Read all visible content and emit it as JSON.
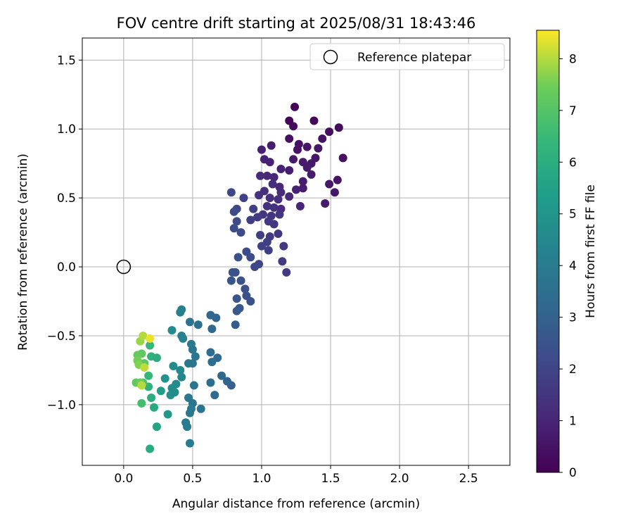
{
  "chart_data": {
    "type": "scatter",
    "title": "FOV centre drift starting at 2025/08/31 18:43:46",
    "xlabel": "Angular distance from reference (arcmin)",
    "ylabel": "Rotation from reference (arcmin)",
    "xlim": [
      -0.3,
      2.8
    ],
    "ylim": [
      -1.44,
      1.66
    ],
    "x_ticks": [
      0.0,
      0.5,
      1.0,
      1.5,
      2.0,
      2.5
    ],
    "x_tick_labels": [
      "0.0",
      "0.5",
      "1.0",
      "1.5",
      "2.0",
      "2.5"
    ],
    "y_ticks": [
      -1.0,
      -0.5,
      0.0,
      0.5,
      1.0,
      1.5
    ],
    "y_tick_labels": [
      "−1.0",
      "−0.5",
      "0.0",
      "0.5",
      "1.0",
      "1.5"
    ],
    "grid": true,
    "legend": {
      "placement": "top-right",
      "entries": [
        "Reference platepar"
      ]
    },
    "reference_point": {
      "x": 0.0,
      "y": 0.0,
      "label": "Reference platepar"
    },
    "colorbar": {
      "label": "Hours from first FF file",
      "colormap": "viridis",
      "range": [
        0,
        8.55
      ],
      "ticks": [
        0,
        1,
        2,
        3,
        4,
        5,
        6,
        7,
        8
      ],
      "tick_labels": [
        "0",
        "1",
        "2",
        "3",
        "4",
        "5",
        "6",
        "7",
        "8"
      ]
    },
    "series": [
      {
        "color_by": "hours",
        "points": [
          {
            "x": 1.24,
            "y": 1.16,
            "c": 0.1
          },
          {
            "x": 1.38,
            "y": 1.06,
            "c": 0.2
          },
          {
            "x": 1.56,
            "y": 1.01,
            "c": 0.3
          },
          {
            "x": 1.2,
            "y": 1.06,
            "c": 0.2
          },
          {
            "x": 1.23,
            "y": 1.02,
            "c": 0.3
          },
          {
            "x": 1.49,
            "y": 0.98,
            "c": 0.4
          },
          {
            "x": 1.44,
            "y": 0.93,
            "c": 0.5
          },
          {
            "x": 1.2,
            "y": 0.93,
            "c": 0.4
          },
          {
            "x": 1.27,
            "y": 0.89,
            "c": 0.5
          },
          {
            "x": 1.07,
            "y": 0.88,
            "c": 0.8
          },
          {
            "x": 1.0,
            "y": 0.85,
            "c": 0.9
          },
          {
            "x": 1.26,
            "y": 0.85,
            "c": 0.5
          },
          {
            "x": 1.33,
            "y": 0.87,
            "c": 0.6
          },
          {
            "x": 1.41,
            "y": 0.86,
            "c": 0.6
          },
          {
            "x": 1.59,
            "y": 0.79,
            "c": 0.4
          },
          {
            "x": 1.02,
            "y": 0.78,
            "c": 0.9
          },
          {
            "x": 1.06,
            "y": 0.76,
            "c": 0.9
          },
          {
            "x": 1.23,
            "y": 0.78,
            "c": 0.7
          },
          {
            "x": 1.3,
            "y": 0.76,
            "c": 0.7
          },
          {
            "x": 1.36,
            "y": 0.75,
            "c": 0.6
          },
          {
            "x": 1.39,
            "y": 0.79,
            "c": 0.6
          },
          {
            "x": 1.14,
            "y": 0.71,
            "c": 0.9
          },
          {
            "x": 1.2,
            "y": 0.7,
            "c": 0.8
          },
          {
            "x": 1.33,
            "y": 0.72,
            "c": 0.7
          },
          {
            "x": 1.36,
            "y": 0.67,
            "c": 0.7
          },
          {
            "x": 1.04,
            "y": 0.66,
            "c": 1.1
          },
          {
            "x": 1.09,
            "y": 0.65,
            "c": 1.1
          },
          {
            "x": 0.99,
            "y": 0.66,
            "c": 1.2
          },
          {
            "x": 1.3,
            "y": 0.62,
            "c": 0.8
          },
          {
            "x": 1.55,
            "y": 0.63,
            "c": 0.5
          },
          {
            "x": 1.08,
            "y": 0.6,
            "c": 1.2
          },
          {
            "x": 1.13,
            "y": 0.58,
            "c": 1.1
          },
          {
            "x": 1.49,
            "y": 0.6,
            "c": 0.6
          },
          {
            "x": 1.3,
            "y": 0.57,
            "c": 0.8
          },
          {
            "x": 1.25,
            "y": 0.56,
            "c": 0.9
          },
          {
            "x": 1.02,
            "y": 0.55,
            "c": 1.3
          },
          {
            "x": 1.14,
            "y": 0.54,
            "c": 1.2
          },
          {
            "x": 0.98,
            "y": 0.52,
            "c": 1.4
          },
          {
            "x": 1.06,
            "y": 0.5,
            "c": 1.3
          },
          {
            "x": 1.53,
            "y": 0.54,
            "c": 0.6
          },
          {
            "x": 1.12,
            "y": 0.49,
            "c": 1.3
          },
          {
            "x": 1.2,
            "y": 0.51,
            "c": 1.1
          },
          {
            "x": 0.78,
            "y": 0.54,
            "c": 2.1
          },
          {
            "x": 0.87,
            "y": 0.5,
            "c": 1.9
          },
          {
            "x": 1.04,
            "y": 0.44,
            "c": 1.4
          },
          {
            "x": 1.09,
            "y": 0.43,
            "c": 1.4
          },
          {
            "x": 1.14,
            "y": 0.42,
            "c": 1.3
          },
          {
            "x": 1.28,
            "y": 0.44,
            "c": 1.0
          },
          {
            "x": 1.46,
            "y": 0.46,
            "c": 0.7
          },
          {
            "x": 0.82,
            "y": 0.42,
            "c": 2.1
          },
          {
            "x": 0.94,
            "y": 0.42,
            "c": 1.8
          },
          {
            "x": 0.8,
            "y": 0.4,
            "c": 2.2
          },
          {
            "x": 1.01,
            "y": 0.38,
            "c": 1.6
          },
          {
            "x": 1.07,
            "y": 0.37,
            "c": 1.5
          },
          {
            "x": 1.13,
            "y": 0.38,
            "c": 1.5
          },
          {
            "x": 0.97,
            "y": 0.36,
            "c": 1.7
          },
          {
            "x": 0.92,
            "y": 0.34,
            "c": 1.8
          },
          {
            "x": 0.82,
            "y": 0.33,
            "c": 2.2
          },
          {
            "x": 1.05,
            "y": 0.33,
            "c": 1.6
          },
          {
            "x": 1.09,
            "y": 0.31,
            "c": 1.6
          },
          {
            "x": 0.8,
            "y": 0.28,
            "c": 2.3
          },
          {
            "x": 0.85,
            "y": 0.25,
            "c": 2.2
          },
          {
            "x": 1.12,
            "y": 0.24,
            "c": 1.6
          },
          {
            "x": 0.99,
            "y": 0.23,
            "c": 1.8
          },
          {
            "x": 1.06,
            "y": 0.22,
            "c": 1.7
          },
          {
            "x": 1.04,
            "y": 0.18,
            "c": 1.8
          },
          {
            "x": 1.0,
            "y": 0.15,
            "c": 1.9
          },
          {
            "x": 1.05,
            "y": 0.12,
            "c": 1.8
          },
          {
            "x": 1.16,
            "y": 0.15,
            "c": 1.6
          },
          {
            "x": 0.89,
            "y": 0.11,
            "c": 2.2
          },
          {
            "x": 0.83,
            "y": 0.07,
            "c": 2.4
          },
          {
            "x": 0.92,
            "y": 0.07,
            "c": 2.2
          },
          {
            "x": 1.15,
            "y": 0.04,
            "c": 1.7
          },
          {
            "x": 0.98,
            "y": 0.02,
            "c": 2.0
          },
          {
            "x": 0.95,
            "y": 0.0,
            "c": 2.1
          },
          {
            "x": 0.81,
            "y": -0.04,
            "c": 2.5
          },
          {
            "x": 0.79,
            "y": -0.04,
            "c": 2.5
          },
          {
            "x": 1.18,
            "y": -0.04,
            "c": 1.7
          },
          {
            "x": 0.85,
            "y": -0.1,
            "c": 2.4
          },
          {
            "x": 0.78,
            "y": -0.1,
            "c": 2.6
          },
          {
            "x": 0.88,
            "y": -0.16,
            "c": 2.4
          },
          {
            "x": 0.89,
            "y": -0.21,
            "c": 2.4
          },
          {
            "x": 0.82,
            "y": -0.23,
            "c": 2.6
          },
          {
            "x": 0.92,
            "y": -0.25,
            "c": 2.4
          },
          {
            "x": 0.84,
            "y": -0.3,
            "c": 2.6
          },
          {
            "x": 0.82,
            "y": -0.32,
            "c": 2.7
          },
          {
            "x": 0.63,
            "y": -0.35,
            "c": 3.2
          },
          {
            "x": 0.67,
            "y": -0.37,
            "c": 3.1
          },
          {
            "x": 0.81,
            "y": -0.42,
            "c": 2.8
          },
          {
            "x": 0.54,
            "y": -0.42,
            "c": 3.5
          },
          {
            "x": 0.48,
            "y": -0.4,
            "c": 3.7
          },
          {
            "x": 0.64,
            "y": -0.45,
            "c": 3.2
          },
          {
            "x": 0.78,
            "y": -0.86,
            "c": 3.0
          },
          {
            "x": 0.75,
            "y": -0.83,
            "c": 3.1
          },
          {
            "x": 0.71,
            "y": -0.79,
            "c": 3.2
          },
          {
            "x": 0.63,
            "y": -0.84,
            "c": 3.4
          },
          {
            "x": 0.66,
            "y": -0.93,
            "c": 3.3
          },
          {
            "x": 0.56,
            "y": -1.03,
            "c": 3.6
          },
          {
            "x": 0.68,
            "y": -0.66,
            "c": 3.3
          },
          {
            "x": 0.63,
            "y": -0.62,
            "c": 3.4
          },
          {
            "x": 0.64,
            "y": -0.69,
            "c": 3.4
          },
          {
            "x": 0.52,
            "y": -0.65,
            "c": 3.8
          },
          {
            "x": 0.5,
            "y": -0.6,
            "c": 3.8
          },
          {
            "x": 0.49,
            "y": -0.56,
            "c": 3.9
          },
          {
            "x": 0.51,
            "y": -0.86,
            "c": 3.8
          },
          {
            "x": 0.47,
            "y": -0.7,
            "c": 3.9
          },
          {
            "x": 0.5,
            "y": -0.7,
            "c": 3.8
          },
          {
            "x": 0.47,
            "y": -0.95,
            "c": 3.9
          },
          {
            "x": 0.5,
            "y": -0.99,
            "c": 3.8
          },
          {
            "x": 0.49,
            "y": -1.03,
            "c": 3.9
          },
          {
            "x": 0.48,
            "y": -1.06,
            "c": 3.9
          },
          {
            "x": 0.45,
            "y": -1.13,
            "c": 4.0
          },
          {
            "x": 0.46,
            "y": -1.16,
            "c": 4.0
          },
          {
            "x": 0.48,
            "y": -1.28,
            "c": 4.0
          },
          {
            "x": 0.41,
            "y": -0.33,
            "c": 4.2
          },
          {
            "x": 0.42,
            "y": -0.31,
            "c": 4.2
          },
          {
            "x": 0.42,
            "y": -0.5,
            "c": 4.3
          },
          {
            "x": 0.43,
            "y": -0.52,
            "c": 4.3
          },
          {
            "x": 0.35,
            "y": -0.46,
            "c": 4.6
          },
          {
            "x": 0.41,
            "y": -0.75,
            "c": 4.5
          },
          {
            "x": 0.42,
            "y": -0.8,
            "c": 4.4
          },
          {
            "x": 0.36,
            "y": -0.72,
            "c": 4.6
          },
          {
            "x": 0.38,
            "y": -0.85,
            "c": 4.6
          },
          {
            "x": 0.35,
            "y": -0.88,
            "c": 4.7
          },
          {
            "x": 0.3,
            "y": -0.81,
            "c": 4.9
          },
          {
            "x": 0.34,
            "y": -0.93,
            "c": 4.8
          },
          {
            "x": 0.37,
            "y": -0.91,
            "c": 4.7
          },
          {
            "x": 0.32,
            "y": -1.07,
            "c": 5.1
          },
          {
            "x": 0.27,
            "y": -0.9,
            "c": 5.3
          },
          {
            "x": 0.24,
            "y": -1.16,
            "c": 5.6
          },
          {
            "x": 0.19,
            "y": -1.32,
            "c": 5.9
          },
          {
            "x": 0.22,
            "y": -1.02,
            "c": 5.8
          },
          {
            "x": 0.2,
            "y": -0.95,
            "c": 6.0
          },
          {
            "x": 0.18,
            "y": -0.87,
            "c": 6.1
          },
          {
            "x": 0.2,
            "y": -0.65,
            "c": 6.2
          },
          {
            "x": 0.24,
            "y": -0.66,
            "c": 6.0
          },
          {
            "x": 0.19,
            "y": -0.57,
            "c": 6.4
          },
          {
            "x": 0.18,
            "y": -0.79,
            "c": 6.4
          },
          {
            "x": 0.13,
            "y": -0.99,
            "c": 6.7
          },
          {
            "x": 0.14,
            "y": -0.84,
            "c": 6.9
          },
          {
            "x": 0.15,
            "y": -0.7,
            "c": 7.1
          },
          {
            "x": 0.13,
            "y": -0.63,
            "c": 7.2
          },
          {
            "x": 0.1,
            "y": -0.64,
            "c": 7.3
          },
          {
            "x": 0.09,
            "y": -0.84,
            "c": 7.2
          },
          {
            "x": 0.12,
            "y": -0.84,
            "c": 7.4
          },
          {
            "x": 0.1,
            "y": -0.68,
            "c": 7.5
          },
          {
            "x": 0.11,
            "y": -0.71,
            "c": 7.6
          },
          {
            "x": 0.12,
            "y": -0.54,
            "c": 7.8
          },
          {
            "x": 0.14,
            "y": -0.5,
            "c": 8.0
          },
          {
            "x": 0.15,
            "y": -0.73,
            "c": 8.1
          },
          {
            "x": 0.13,
            "y": -0.86,
            "c": 8.0
          },
          {
            "x": 0.19,
            "y": -0.52,
            "c": 8.4
          }
        ]
      }
    ]
  }
}
